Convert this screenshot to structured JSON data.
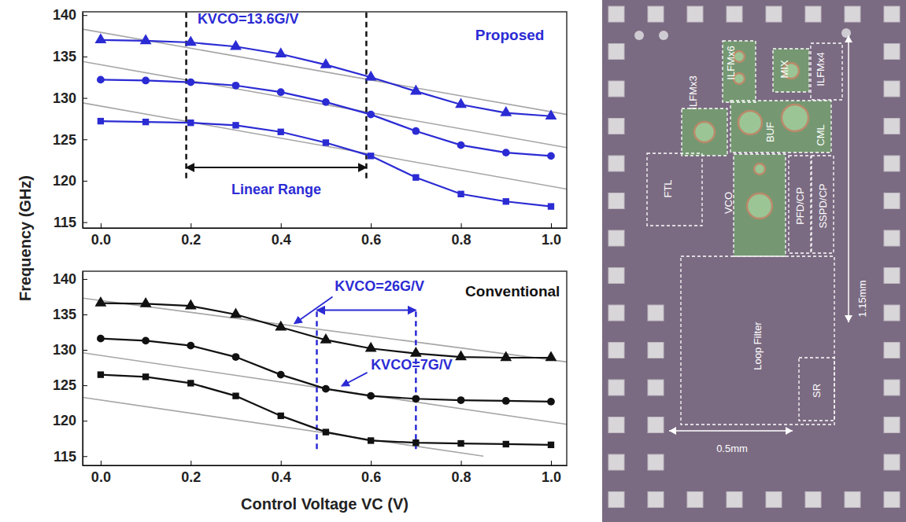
{
  "chart_data": [
    {
      "type": "line",
      "title": "Proposed",
      "ylabel": "Frequency (GHz)",
      "xlim": [
        -0.04,
        1.035
      ],
      "xticks": [
        {
          "value": 0,
          "label": "0.0"
        },
        0.2,
        0.4,
        0.6,
        0.8,
        {
          "value": 1,
          "label": "1.0"
        }
      ],
      "ylim": [
        114.3,
        140.4
      ],
      "yticks": [
        115,
        120,
        125,
        130,
        135,
        140
      ],
      "grid": false,
      "tick_labels": true,
      "x": [
        0,
        0.1,
        0.2,
        0.3,
        0.4,
        0.5,
        0.6,
        0.7,
        0.8,
        0.9,
        1.0
      ],
      "series": [
        {
          "color": "#2b2bd4",
          "marker": "triangle",
          "line_style": "solid",
          "values": [
            137.0,
            136.9,
            136.7,
            136.2,
            135.3,
            134.0,
            132.5,
            130.8,
            129.2,
            128.2,
            127.8
          ]
        },
        {
          "color": "#2b2bd4",
          "marker": "circle",
          "line_style": "solid",
          "values": [
            132.2,
            132.1,
            131.9,
            131.5,
            130.7,
            129.5,
            128.0,
            126.0,
            124.3,
            123.4,
            123.0
          ]
        },
        {
          "color": "#2b2bd4",
          "marker": "square",
          "line_style": "solid",
          "values": [
            127.2,
            127.1,
            127.0,
            126.7,
            125.9,
            124.6,
            123.0,
            120.4,
            118.4,
            117.5,
            116.9
          ]
        }
      ],
      "fit_lines": [
        {
          "color": "#a6a6a6",
          "x": [
            -0.04,
            1.035
          ],
          "values": [
            138.3,
            128.0
          ]
        },
        {
          "color": "#a6a6a6",
          "x": [
            -0.04,
            1.035
          ],
          "values": [
            134.4,
            124.0
          ]
        },
        {
          "color": "#a6a6a6",
          "x": [
            -0.04,
            1.035
          ],
          "values": [
            129.4,
            119.0
          ]
        }
      ],
      "linear_range": [
        0.19,
        0.59
      ],
      "annotations": [
        "KVCO=13.6G/V",
        "Linear Range"
      ]
    },
    {
      "type": "line",
      "title": "Conventional",
      "xlabel": "Control Voltage VC (V)",
      "xlim": [
        -0.04,
        1.035
      ],
      "xticks": [
        {
          "value": 0,
          "label": "0.0"
        },
        0.2,
        0.4,
        0.6,
        0.8,
        {
          "value": 1,
          "label": "1.0"
        }
      ],
      "ylim": [
        113.7,
        141.1
      ],
      "yticks": [
        115,
        120,
        125,
        130,
        135,
        140
      ],
      "grid": false,
      "tick_labels": true,
      "x": [
        0,
        0.1,
        0.2,
        0.3,
        0.4,
        0.5,
        0.6,
        0.7,
        0.8,
        0.9,
        1.0
      ],
      "series": [
        {
          "color": "#111111",
          "marker": "triangle",
          "line_style": "solid",
          "values": [
            136.6,
            136.5,
            136.2,
            135.0,
            133.2,
            131.4,
            130.2,
            129.5,
            129.0,
            128.9,
            128.9
          ]
        },
        {
          "color": "#111111",
          "marker": "circle",
          "line_style": "solid",
          "values": [
            131.6,
            131.3,
            130.6,
            129.0,
            126.5,
            124.5,
            123.5,
            123.1,
            122.9,
            122.8,
            122.7
          ]
        },
        {
          "color": "#111111",
          "marker": "square",
          "line_style": "solid",
          "values": [
            126.5,
            126.2,
            125.3,
            123.5,
            120.7,
            118.4,
            117.2,
            116.9,
            116.8,
            116.7,
            116.6
          ]
        }
      ],
      "fit_lines": [
        {
          "color": "#a6a6a6",
          "x": [
            -0.04,
            1.035
          ],
          "values": [
            137.3,
            128.3
          ]
        },
        {
          "color": "#a6a6a6",
          "x": [
            -0.04,
            1.035
          ],
          "values": [
            129.6,
            119.5
          ]
        },
        {
          "color": "#a6a6a6",
          "x": [
            -0.04,
            0.85
          ],
          "values": [
            123.3,
            115.0
          ]
        }
      ],
      "linear_range": [
        0.48,
        0.7
      ],
      "annotations": [
        "KVCO=26G/V",
        "KVCO=7G/V"
      ]
    }
  ],
  "die_photo": {
    "labels": [
      "ILFMx3",
      "ILFMx6",
      "MIX",
      "ILFMx4",
      "BUF",
      "CML",
      "FTL",
      "VCO",
      "PFD/CP",
      "SSPD/CP",
      "Loop Filter",
      "SR",
      "1.15mm",
      "0.5mm"
    ]
  }
}
